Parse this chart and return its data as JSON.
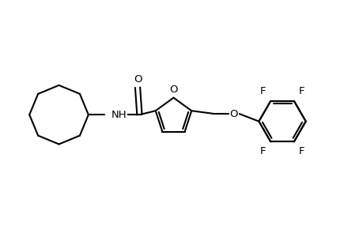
{
  "background_color": "#ffffff",
  "line_color": "#000000",
  "line_width": 1.5,
  "font_size": 9.5,
  "figsize": [
    4.6,
    3.0
  ],
  "dpi": 100,
  "xlim": [
    0,
    9.5
  ],
  "ylim": [
    0,
    6.0
  ]
}
